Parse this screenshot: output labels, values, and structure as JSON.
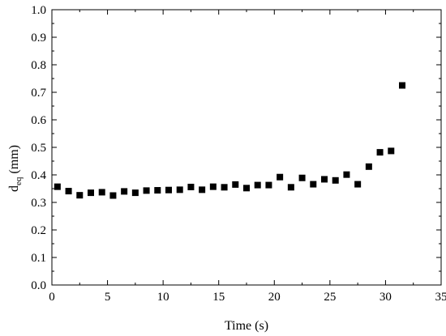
{
  "chart_data": {
    "type": "scatter",
    "title": "",
    "xlabel": "Time (s)",
    "ylabel_main": "d",
    "ylabel_sub": "eq",
    "ylabel_unit": " (mm)",
    "xlim": [
      0,
      35
    ],
    "ylim": [
      0.0,
      1.0
    ],
    "xticks": [
      0,
      5,
      10,
      15,
      20,
      25,
      30,
      35
    ],
    "xtick_labels": [
      "0",
      "5",
      "10",
      "15",
      "20",
      "25",
      "30",
      "35"
    ],
    "yticks": [
      0.0,
      0.1,
      0.2,
      0.3,
      0.4,
      0.5,
      0.6,
      0.7,
      0.8,
      0.9,
      1.0
    ],
    "ytick_labels": [
      "0.0",
      "0.1",
      "0.2",
      "0.3",
      "0.4",
      "0.5",
      "0.6",
      "0.7",
      "0.8",
      "0.9",
      "1.0"
    ],
    "grid": false,
    "marker": "square",
    "color": "#000000",
    "x": [
      0.5,
      1.5,
      2.5,
      3.5,
      4.5,
      5.5,
      6.5,
      7.5,
      8.5,
      9.5,
      10.5,
      11.5,
      12.5,
      13.5,
      14.5,
      15.5,
      16.5,
      17.5,
      18.5,
      19.5,
      20.5,
      21.5,
      22.5,
      23.5,
      24.5,
      25.5,
      26.5,
      27.5,
      28.5,
      29.5,
      30.5,
      31.5
    ],
    "y": [
      0.357,
      0.341,
      0.326,
      0.335,
      0.337,
      0.325,
      0.34,
      0.335,
      0.343,
      0.344,
      0.345,
      0.346,
      0.356,
      0.346,
      0.357,
      0.355,
      0.365,
      0.352,
      0.363,
      0.363,
      0.392,
      0.355,
      0.389,
      0.366,
      0.384,
      0.38,
      0.401,
      0.366,
      0.43,
      0.482,
      0.487,
      0.725
    ]
  }
}
